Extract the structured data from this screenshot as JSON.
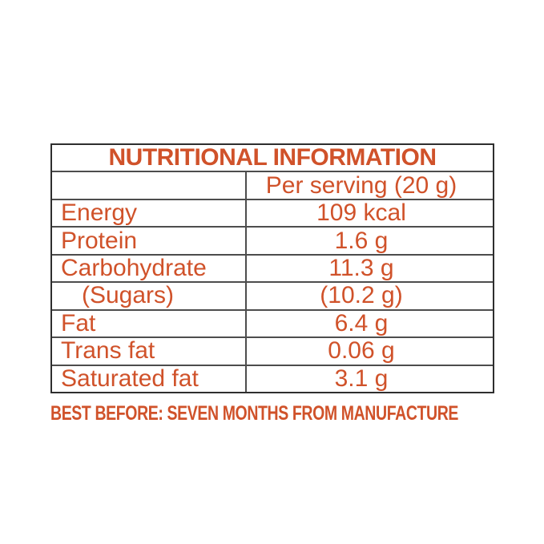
{
  "colors": {
    "text_orange": "#d0522a",
    "border_outer": "#2e2e2e",
    "border_inner": "#4d4d4d",
    "background": "#ffffff"
  },
  "table": {
    "title": "NUTRITIONAL INFORMATION",
    "column_header": "Per serving (20 g)",
    "rows": [
      {
        "label": "Energy",
        "value": "109 kcal"
      },
      {
        "label": "Protein",
        "value": "1.6 g"
      },
      {
        "label": "Carbohydrate",
        "value": "11.3 g"
      },
      {
        "label": "(Sugars)",
        "value": "(10.2 g)"
      },
      {
        "label": "Fat",
        "value": "6.4 g"
      },
      {
        "label": "Trans fat",
        "value": "0.06 g"
      },
      {
        "label": "Saturated fat",
        "value": "3.1 g"
      }
    ]
  },
  "footer": {
    "best_before": "BEST BEFORE: SEVEN MONTHS FROM MANUFACTURE"
  }
}
